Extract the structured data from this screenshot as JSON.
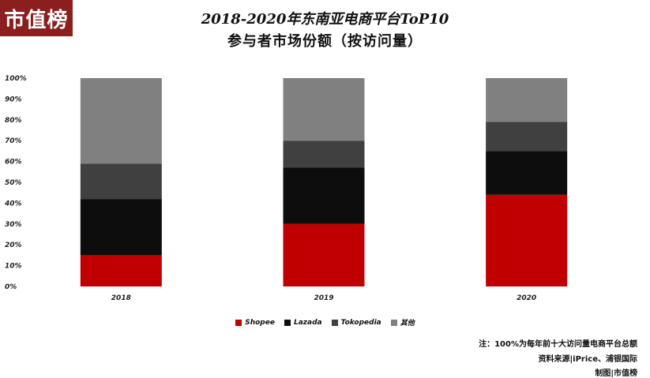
{
  "logo": {
    "text": "市值榜",
    "color": "#8b1e1e"
  },
  "title": {
    "line1": "2018-2020年东南亚电商平台ToP10",
    "line2": "参与者市场份额（按访问量）"
  },
  "chart_data": {
    "type": "bar",
    "stacked": true,
    "categories": [
      "2018",
      "2019",
      "2020"
    ],
    "series": [
      {
        "name": "Shopee",
        "color": "#c00000",
        "values": [
          15,
          30,
          44
        ]
      },
      {
        "name": "Lazada",
        "color": "#0d0d0d",
        "values": [
          27,
          27,
          21
        ]
      },
      {
        "name": "Tokopedia",
        "color": "#404040",
        "values": [
          17,
          13,
          14
        ]
      },
      {
        "name": "其他",
        "color": "#808080",
        "values": [
          41,
          30,
          21
        ]
      }
    ],
    "ylim": [
      0,
      100
    ],
    "yticks": [
      "0%",
      "10%",
      "20%",
      "30%",
      "40%",
      "50%",
      "60%",
      "70%",
      "80%",
      "90%",
      "100%"
    ],
    "grid": false,
    "legend_position": "bottom"
  },
  "notes": {
    "note": "注：100%为每年前十大访问量电商平台总额",
    "source": "资料来源|iPrice、浦银国际",
    "credit": "制图|市值榜"
  }
}
